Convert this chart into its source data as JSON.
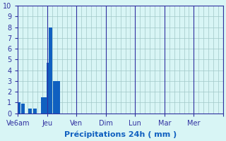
{
  "bar_positions": [
    0,
    0.5,
    1.5,
    2.0,
    3.5,
    3.9,
    4.3,
    4.7,
    5.1,
    5.5
  ],
  "bar_values": [
    1.0,
    0.9,
    0.45,
    0.45,
    1.5,
    1.5,
    4.7,
    8.0,
    3.0,
    3.0
  ],
  "bar_color": "#1060c0",
  "bar_width": 0.45,
  "background_color": "#d8f5f5",
  "grid_color": "#a0c8c8",
  "axis_color": "#3030a0",
  "tick_label_color": "#3030a0",
  "xlabel": "Précipitations 24h ( mm )",
  "xlabel_color": "#1060c0",
  "ylim": [
    0,
    10
  ],
  "yticks": [
    0,
    1,
    2,
    3,
    4,
    5,
    6,
    7,
    8,
    9,
    10
  ],
  "xlim": [
    0,
    42
  ],
  "day_tick_positions": [
    0,
    6,
    12,
    18,
    24,
    30,
    36,
    42
  ],
  "day_labels": [
    "Ve6am",
    "Jeu",
    "Ven",
    "Dim",
    "Lun",
    "Mar",
    "Mer",
    ""
  ],
  "grid_minor_step": 1
}
